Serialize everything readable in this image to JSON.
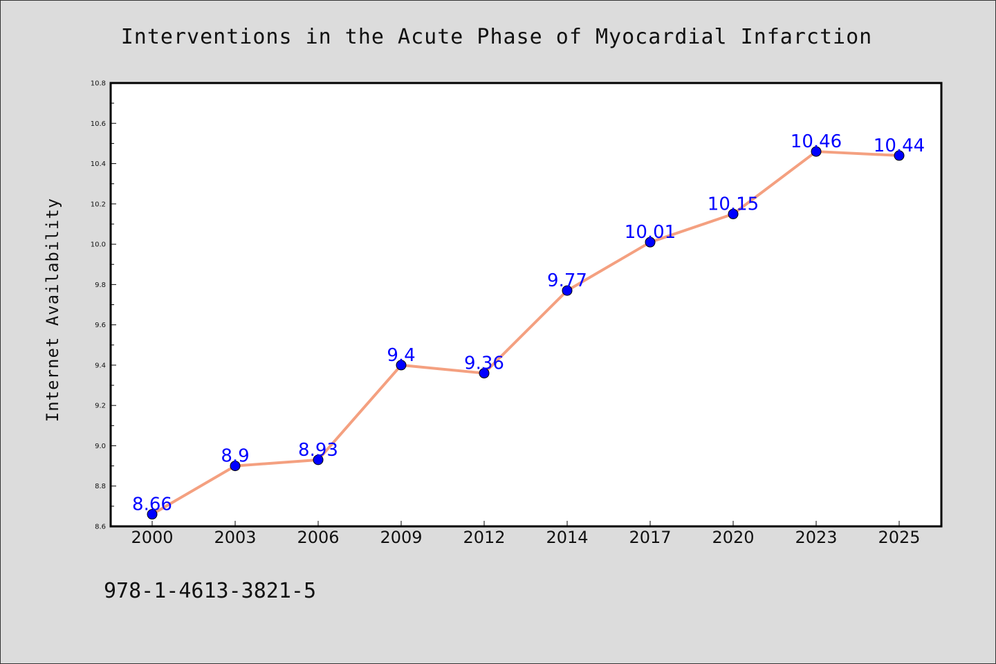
{
  "chart_data": {
    "type": "line",
    "title": "Interventions in the Acute Phase of Myocardial Infarction",
    "xlabel": "",
    "ylabel": "Internet Availability",
    "categories": [
      "2000",
      "2003",
      "2006",
      "2009",
      "2012",
      "2014",
      "2017",
      "2020",
      "2023",
      "2025"
    ],
    "series": [
      {
        "values": [
          8.66,
          8.9,
          8.93,
          9.4,
          9.36,
          9.77,
          10.01,
          10.15,
          10.46,
          10.44
        ],
        "data_labels": [
          "8.66",
          "8.9",
          "8.93",
          "9.4",
          "9.36",
          "9.77",
          "10.01",
          "10.15",
          "10.46",
          "10.44"
        ],
        "line_color": "#f4a080",
        "marker_color": "#0000ff",
        "label_color": "#0000ff"
      }
    ],
    "ylim": [
      8.6,
      10.8
    ],
    "yticks": [
      "8.6",
      "8.8",
      "9.0",
      "9.2",
      "9.4",
      "9.6",
      "9.8",
      "10.0",
      "10.2",
      "10.4",
      "10.6",
      "10.8"
    ],
    "grid": false,
    "legend": "none"
  },
  "footer": {
    "isbn": "978-1-4613-3821-5"
  }
}
